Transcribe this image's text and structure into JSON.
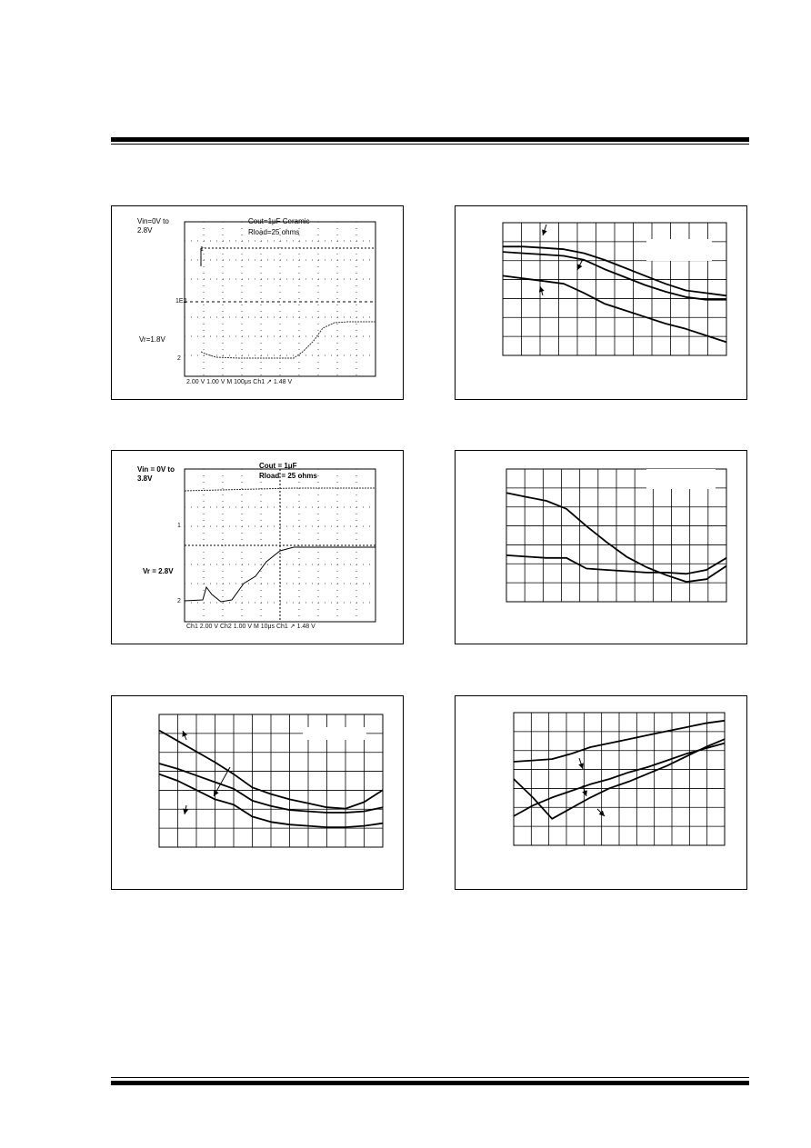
{
  "scope1": {
    "condition_a": "Vin=0V to",
    "condition_b": "2.8V",
    "cout": "Cout=1μF Ceramic",
    "rload": "Rload=25 ohms",
    "vr": "Vr=1.8V",
    "axis_text": "2.00 V   1.00 V   M 100μs  Ch1 ↗  1.48 V",
    "ch1_marker": "1",
    "ch2_marker": "2",
    "ref_marker": "1E2"
  },
  "scope2": {
    "condition_a": "Vin = 0V to",
    "condition_b": "3.8V",
    "cout": "Cout = 1μF",
    "rload": "Rload = 25 ohms",
    "vr": "Vr = 2.8V",
    "axis_text": "Ch1   2.00 V   Ch2   1.00 V   M 10μs  Ch1 ↗   1.48 V",
    "ch1_marker": "1",
    "ch2_marker": "2"
  },
  "chart_data": [
    {
      "type": "line",
      "series": [
        {
          "values": [
            0.82,
            0.82,
            0.81,
            0.8,
            0.77,
            0.72,
            0.66,
            0.6,
            0.54,
            0.49,
            0.47,
            0.45
          ]
        },
        {
          "values": [
            0.78,
            0.77,
            0.76,
            0.75,
            0.72,
            0.65,
            0.59,
            0.53,
            0.48,
            0.44,
            0.42,
            0.42
          ]
        },
        {
          "values": [
            0.6,
            0.58,
            0.56,
            0.54,
            0.47,
            0.39,
            0.34,
            0.29,
            0.24,
            0.2,
            0.15,
            0.1
          ]
        }
      ]
    },
    {
      "type": "line",
      "series": [
        {
          "values": [
            0.82,
            0.79,
            0.76,
            0.7,
            0.57,
            0.45,
            0.34,
            0.26,
            0.2,
            0.15,
            0.17,
            0.27
          ]
        },
        {
          "values": [
            0.35,
            0.34,
            0.33,
            0.33,
            0.25,
            0.24,
            0.23,
            0.22,
            0.22,
            0.21,
            0.24,
            0.33
          ]
        }
      ]
    },
    {
      "type": "line",
      "series": [
        {
          "values": [
            0.88,
            0.8,
            0.72,
            0.64,
            0.55,
            0.45,
            0.4,
            0.36,
            0.33,
            0.3,
            0.29,
            0.34,
            0.43
          ]
        },
        {
          "values": [
            0.63,
            0.59,
            0.54,
            0.49,
            0.44,
            0.35,
            0.31,
            0.28,
            0.27,
            0.26,
            0.26,
            0.27,
            0.3
          ]
        },
        {
          "values": [
            0.55,
            0.5,
            0.43,
            0.36,
            0.32,
            0.23,
            0.19,
            0.17,
            0.16,
            0.15,
            0.15,
            0.16,
            0.18
          ]
        }
      ]
    },
    {
      "type": "line",
      "series": [
        {
          "values": [
            0.63,
            0.64,
            0.65,
            0.69,
            0.74,
            0.77,
            0.8,
            0.83,
            0.86,
            0.89,
            0.92,
            0.94
          ]
        },
        {
          "values": [
            0.5,
            0.36,
            0.2,
            0.28,
            0.36,
            0.43,
            0.48,
            0.54,
            0.6,
            0.67,
            0.74,
            0.8
          ]
        },
        {
          "values": [
            0.22,
            0.3,
            0.36,
            0.41,
            0.46,
            0.5,
            0.55,
            0.59,
            0.64,
            0.69,
            0.73,
            0.77
          ]
        }
      ]
    }
  ]
}
